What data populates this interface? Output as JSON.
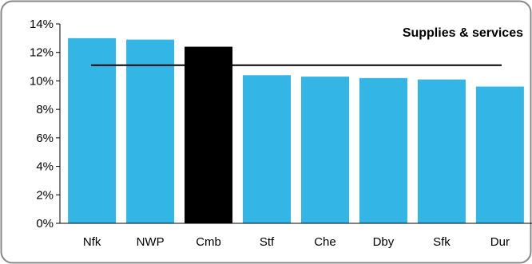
{
  "chart_data": {
    "type": "bar",
    "title": "Supplies & services",
    "xlabel": "",
    "ylabel": "",
    "categories": [
      "Nfk",
      "NWP",
      "Cmb",
      "Stf",
      "Che",
      "Dby",
      "Sfk",
      "Dur"
    ],
    "values": [
      13.0,
      12.9,
      12.4,
      10.4,
      10.3,
      10.2,
      10.1,
      9.6
    ],
    "highlight_category": "Cmb",
    "reference_line": 11.1,
    "ylim": [
      0,
      14
    ],
    "y_ticks": [
      0,
      2,
      4,
      6,
      8,
      10,
      12,
      14
    ],
    "y_tick_labels": [
      "0%",
      "2%",
      "4%",
      "6%",
      "8%",
      "10%",
      "12%",
      "14%"
    ],
    "grid": false,
    "colors": {
      "bar": "#33b5e5",
      "highlight": "#000000",
      "reference_line": "#000000",
      "border": "#888888"
    }
  }
}
